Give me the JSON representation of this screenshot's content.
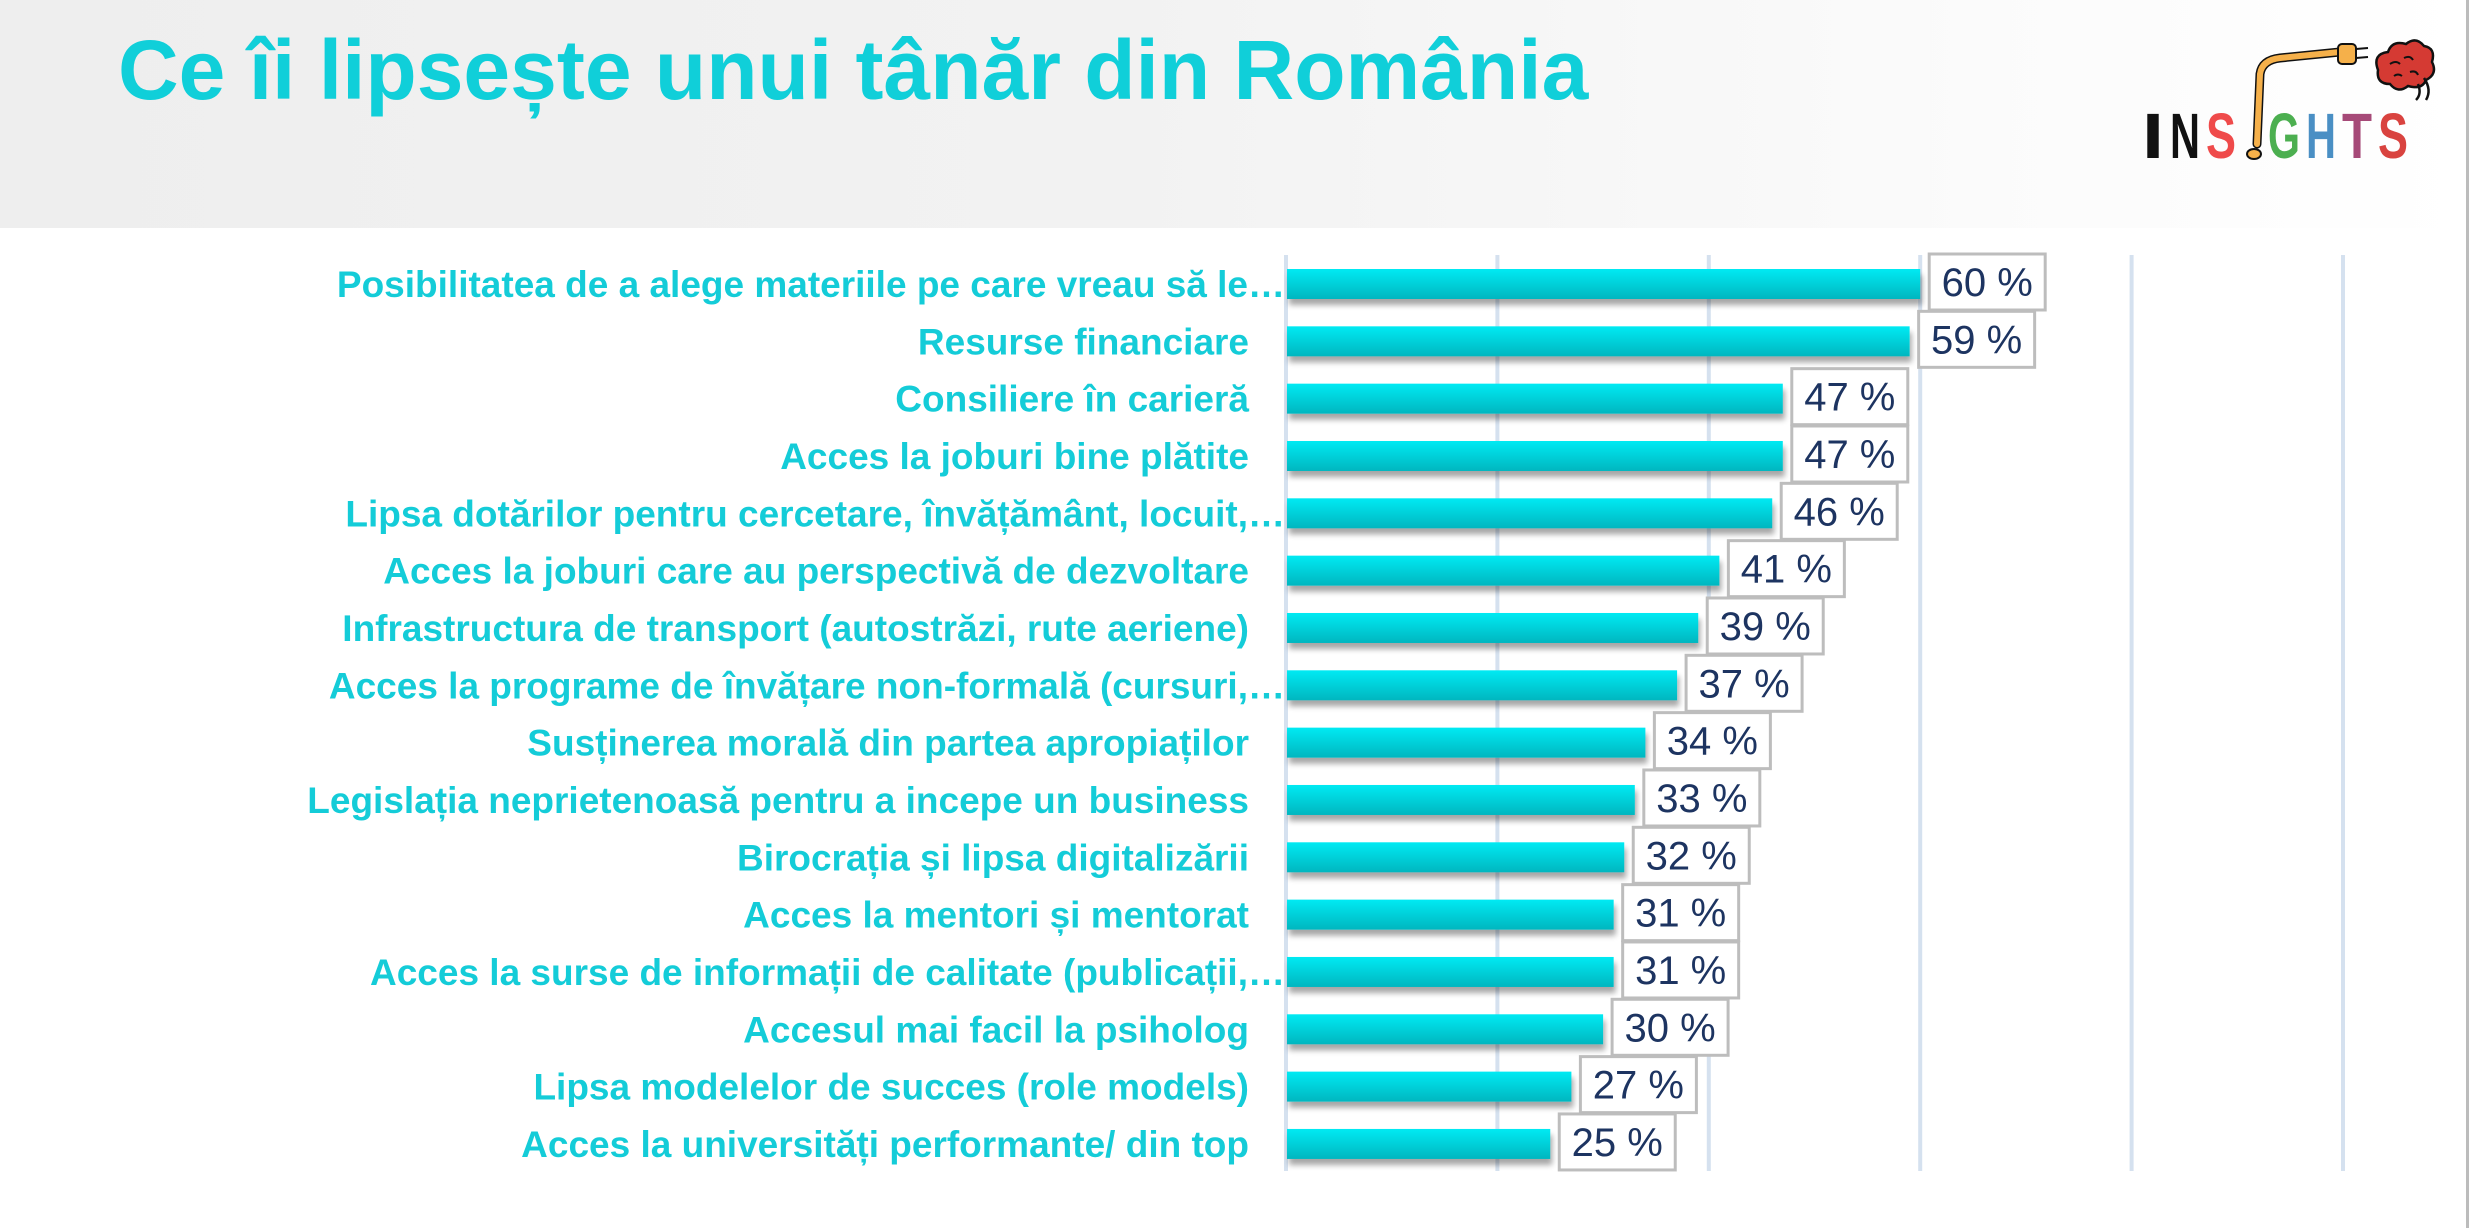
{
  "header": {
    "title": "Ce îi lipsește unui tânăr din România"
  },
  "logo": {
    "text_letters": [
      "I",
      "N",
      "S",
      "!",
      "G",
      "H",
      "T",
      "S"
    ],
    "letter_colors": [
      "#111111",
      "#111111",
      "#ef4a4a",
      "#f5b04a",
      "#4caf50",
      "#4a8fc4",
      "#a64a78",
      "#d9433f"
    ],
    "brain_color": "#d53a33",
    "cord_color": "#f5b04a",
    "wordmark": "INSIGHTS"
  },
  "colors": {
    "accent": "#10cfd9",
    "bar_top": "#00eaf3",
    "bar_bottom": "#04b6bf",
    "gridline": "#d5e1ef",
    "value_text": "#1d3461",
    "value_box_border": "#bdbdbd"
  },
  "chart_data": {
    "type": "bar",
    "orientation": "horizontal",
    "title": "Ce îi lipsește unui tânăr din România",
    "xlabel": "",
    "ylabel": "",
    "xlim": [
      0,
      100
    ],
    "x_gridlines": [
      0,
      20,
      40,
      60,
      80,
      100
    ],
    "grid": true,
    "legend": "none",
    "value_suffix": " %",
    "categories": [
      "Posibilitatea de a alege materiile pe care vreau să le…",
      "Resurse financiare ",
      "Consiliere în carieră",
      "Acces la joburi bine plătite",
      "Lipsa dotărilor pentru cercetare, învățământ, locuit,…",
      "Acces la joburi care au perspectivă de dezvoltare",
      "Infrastructura de transport (autostrăzi, rute aeriene)",
      "Acces la programe de învățare non-formală (cursuri,…",
      "Susținerea morală din partea apropiaților",
      "Legislația neprietenoasă pentru a incepe un business",
      "Birocrația și lipsa digitalizării",
      "Acces la mentori și mentorat",
      "Acces la surse de informații de calitate (publicații,…",
      "Accesul mai facil la psiholog",
      "Lipsa modelelor de succes (role models)",
      "Acces la universități performante/ din top"
    ],
    "truncated": [
      true,
      false,
      false,
      false,
      true,
      false,
      false,
      true,
      false,
      false,
      false,
      false,
      true,
      false,
      false,
      false
    ],
    "values": [
      60,
      59,
      47,
      47,
      46,
      41,
      39,
      37,
      34,
      33,
      32,
      31,
      31,
      30,
      27,
      25
    ],
    "value_labels": [
      "60 %",
      "59 %",
      "47 %",
      "47 %",
      "46 %",
      "41 %",
      "39 %",
      "37 %",
      "34 %",
      "33 %",
      "32 %",
      "31 %",
      "31 %",
      "30 %",
      "27 %",
      "25 %"
    ]
  }
}
